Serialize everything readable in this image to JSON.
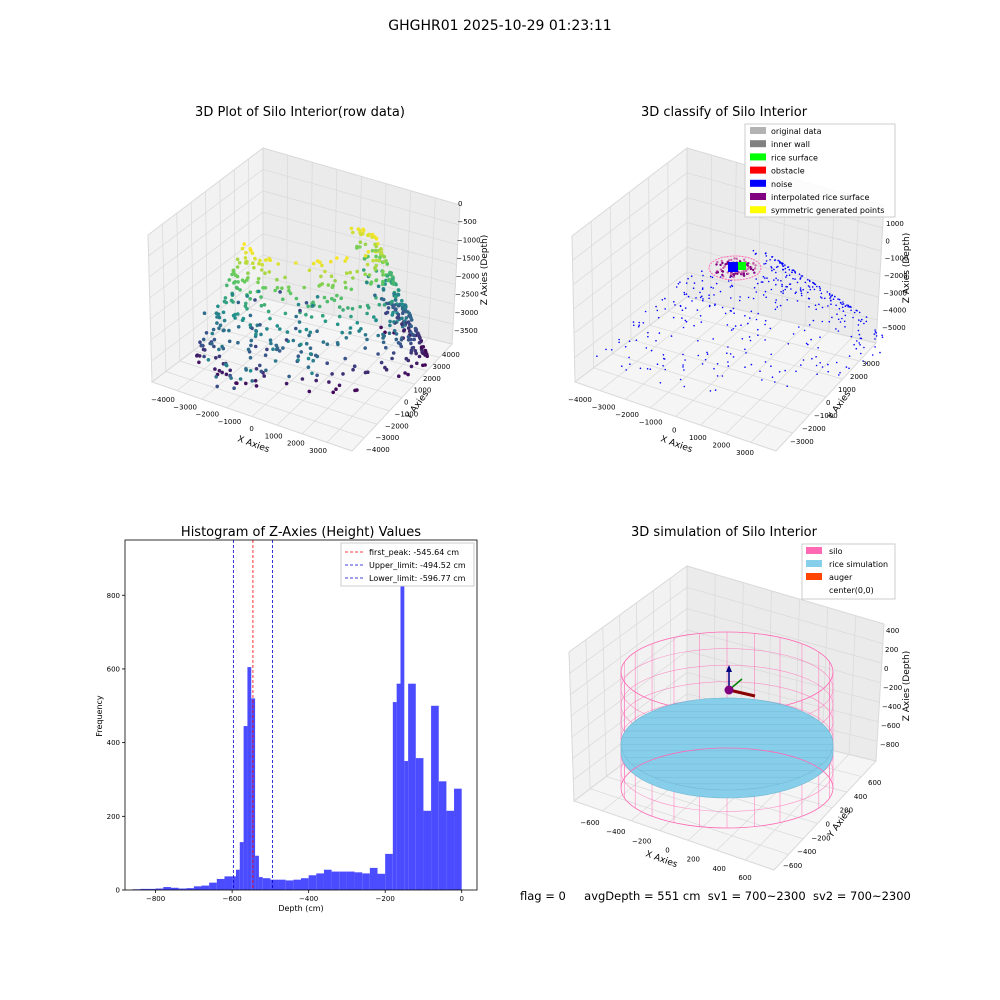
{
  "suptitle": "GHGHR01 2025-10-29 01:23:11",
  "footer": {
    "flag": "flag = 0",
    "avgDepth": "avgDepth = 551 cm",
    "sv1": "sv1 = 700~2300",
    "sv2": "sv2 = 700~2300"
  },
  "colors": {
    "viridis_low": "#440154",
    "viridis_mid": "#21918c",
    "viridis_high": "#fde725",
    "hist_bar": "#4b4bff",
    "peak_line": "#ff0000",
    "limit_line": "#0000cc",
    "silo": "#ff69b4",
    "rice": "#87ceeb",
    "auger": "#ff4500"
  },
  "chart_data": [
    {
      "type": "scatter",
      "title": "3D Plot of Silo Interior(row data)",
      "xlabel": "X Axies",
      "ylabel": "Y Axies",
      "zlabel": "Z Axies (Depth)",
      "xticks": [
        "−4000",
        "−3000",
        "−2000",
        "−1000",
        "0",
        "1000",
        "2000",
        "3000"
      ],
      "yticks": [
        "4000",
        "3000",
        "2000",
        "1000",
        "0",
        "−1000",
        "−2000",
        "−3000",
        "−4000"
      ],
      "zticks": [
        "0",
        "−500",
        "−1000",
        "−1500",
        "−2000",
        "−2500",
        "−3000",
        "−3500"
      ],
      "grid": true
    },
    {
      "type": "scatter",
      "title": "3D classify of Silo Interior",
      "xlabel": "X Axies",
      "ylabel": "Y Axies",
      "zlabel": "Z Axies (Depth)",
      "xticks": [
        "−4000",
        "−3000",
        "−2000",
        "−1000",
        "0",
        "1000",
        "2000",
        "3000"
      ],
      "yticks": [
        "3000",
        "2000",
        "1000",
        "0",
        "−1000",
        "−2000",
        "−3000"
      ],
      "zticks": [
        "1000",
        "0",
        "−1000",
        "−2000",
        "−3000",
        "−4000",
        "−5000"
      ],
      "legend": [
        {
          "name": "original data",
          "color": "#b3b3b3"
        },
        {
          "name": "inner wall",
          "color": "#808080"
        },
        {
          "name": "rice surface",
          "color": "#00ff00"
        },
        {
          "name": "obstacle",
          "color": "#ff0000"
        },
        {
          "name": "noise",
          "color": "#0000ff"
        },
        {
          "name": "interpolated rice surface",
          "color": "#800080"
        },
        {
          "name": "symmetric generated points",
          "color": "#ffff00"
        }
      ],
      "legend_position": "top-right",
      "grid": true
    },
    {
      "type": "bar",
      "title": "Histogram of Z-Axies (Height) Values",
      "xlabel": "Depth (cm)",
      "ylabel": "Frequency",
      "xlim": [
        -880,
        40
      ],
      "ylim": [
        0,
        950
      ],
      "xticks": [
        -800,
        -600,
        -400,
        -200,
        0
      ],
      "yticks": [
        0,
        200,
        400,
        600,
        800
      ],
      "bin_width": 20,
      "bins": [
        {
          "x0": -860,
          "v": 2
        },
        {
          "x0": -840,
          "v": 3
        },
        {
          "x0": -820,
          "v": 3
        },
        {
          "x0": -800,
          "v": 4
        },
        {
          "x0": -780,
          "v": 8
        },
        {
          "x0": -760,
          "v": 6
        },
        {
          "x0": -740,
          "v": 4
        },
        {
          "x0": -720,
          "v": 5
        },
        {
          "x0": -700,
          "v": 10
        },
        {
          "x0": -680,
          "v": 12
        },
        {
          "x0": -660,
          "v": 20
        },
        {
          "x0": -640,
          "v": 30
        },
        {
          "x0": -620,
          "v": 37
        },
        {
          "x0": -600,
          "v": 37
        },
        {
          "x0": -590,
          "v": 55
        },
        {
          "x0": -580,
          "v": 130
        },
        {
          "x0": -570,
          "v": 445
        },
        {
          "x0": -560,
          "v": 605
        },
        {
          "x0": -550,
          "v": 520
        },
        {
          "x0": -540,
          "v": 93
        },
        {
          "x0": -530,
          "v": 35
        },
        {
          "x0": -520,
          "v": 32
        },
        {
          "x0": -500,
          "v": 28
        },
        {
          "x0": -480,
          "v": 28
        },
        {
          "x0": -460,
          "v": 26
        },
        {
          "x0": -440,
          "v": 28
        },
        {
          "x0": -420,
          "v": 32
        },
        {
          "x0": -400,
          "v": 40
        },
        {
          "x0": -380,
          "v": 45
        },
        {
          "x0": -360,
          "v": 55
        },
        {
          "x0": -340,
          "v": 50
        },
        {
          "x0": -320,
          "v": 50
        },
        {
          "x0": -300,
          "v": 50
        },
        {
          "x0": -280,
          "v": 48
        },
        {
          "x0": -260,
          "v": 45
        },
        {
          "x0": -240,
          "v": 60
        },
        {
          "x0": -220,
          "v": 44
        },
        {
          "x0": -200,
          "v": 98
        },
        {
          "x0": -180,
          "v": 510
        },
        {
          "x0": -170,
          "v": 560
        },
        {
          "x0": -160,
          "v": 910
        },
        {
          "x0": -150,
          "v": 350
        },
        {
          "x0": -140,
          "v": 560
        },
        {
          "x0": -120,
          "v": 358
        },
        {
          "x0": -100,
          "v": 215
        },
        {
          "x0": -80,
          "v": 500
        },
        {
          "x0": -60,
          "v": 295
        },
        {
          "x0": -40,
          "v": 215
        },
        {
          "x0": -20,
          "v": 275
        }
      ],
      "vlines": [
        {
          "x": -545.64,
          "label": "first_peak: -545.64 cm",
          "color": "#ff0000"
        },
        {
          "x": -494.52,
          "label": "Upper_limit: -494.52 cm",
          "color": "#0000cc"
        },
        {
          "x": -596.77,
          "label": "Lower_limit: -596.77 cm",
          "color": "#0000cc"
        }
      ],
      "legend_position": "top-right"
    },
    {
      "type": "scatter",
      "title": "3D simulation of Silo Interior",
      "xlabel": "X Axies",
      "ylabel": "Y Axies",
      "zlabel": "Z Axies (Depth)",
      "xticks": [
        "−600",
        "−400",
        "−200",
        "0",
        "200",
        "400",
        "600"
      ],
      "yticks": [
        "600",
        "400",
        "200",
        "0",
        "−200",
        "−400",
        "−600"
      ],
      "zticks": [
        "400",
        "200",
        "0",
        "−200",
        "−400",
        "−600",
        "−800"
      ],
      "legend": [
        {
          "name": "silo",
          "color": "#ff69b4"
        },
        {
          "name": "rice simulation",
          "color": "#87ceeb"
        },
        {
          "name": "auger",
          "color": "#ff4500"
        },
        {
          "name": "center(0,0)",
          "color": ""
        }
      ],
      "legend_position": "top-right",
      "grid": true
    }
  ]
}
